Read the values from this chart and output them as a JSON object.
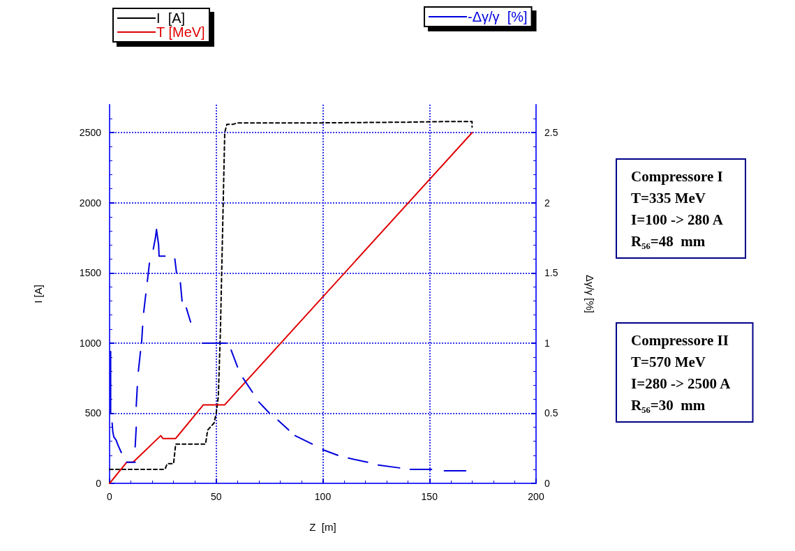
{
  "chart_data": {
    "type": "line",
    "xlabel": "Z  [m]",
    "ylabel": "I [A]",
    "y2label": "Δγ/γ [%]",
    "xlim": [
      0,
      200
    ],
    "xticks": [
      0,
      50,
      100,
      150,
      200
    ],
    "ylim": [
      0,
      2700
    ],
    "yticks": [
      0,
      500,
      1000,
      1500,
      2000,
      2500
    ],
    "y2lim": [
      0,
      2.7
    ],
    "y2ticks": [
      0,
      0.5,
      1,
      1.5,
      2,
      2.5
    ],
    "grid": true,
    "legend": "top",
    "marker": "none",
    "series": [
      {
        "name": "I  [A]",
        "color": "#000000",
        "line_style": "dashed",
        "x": [
          0,
          26,
          27,
          30,
          31,
          45,
          46,
          49,
          50,
          51,
          52,
          53,
          54,
          55,
          58,
          60,
          100,
          140,
          160,
          170,
          170
        ],
        "values": [
          100,
          100,
          140,
          140,
          280,
          280,
          380,
          430,
          500,
          620,
          1100,
          1800,
          2500,
          2560,
          2560,
          2570,
          2570,
          2575,
          2580,
          2580,
          2540
        ]
      },
      {
        "name": "T [MeV]",
        "color": "#e00000",
        "line_style": "solid",
        "x": [
          0,
          8,
          11,
          24,
          25,
          31,
          44,
          54,
          170
        ],
        "values": [
          0,
          150,
          150,
          340,
          320,
          320,
          560,
          560,
          2500
        ]
      },
      {
        "name": "-Δγ/γ  [%]",
        "color": "#0000dd",
        "line_style": "solid",
        "axis": "y2",
        "x": [
          0.5,
          0.5,
          null,
          1.2,
          1.5,
          2,
          3,
          4,
          5.5,
          null,
          8,
          12,
          null,
          12,
          12.5,
          null,
          12.5,
          13,
          null,
          13.5,
          14.5,
          null,
          15,
          15.5,
          null,
          16,
          17,
          null,
          17.7,
          18.7,
          null,
          20.5,
          21.5,
          22,
          23,
          23.2,
          26,
          null,
          30.6,
          31.4,
          null,
          33.2,
          34,
          null,
          36,
          38,
          null,
          43.7,
          54.7,
          null,
          57,
          60,
          null,
          62.6,
          67,
          null,
          70,
          75,
          null,
          79,
          84,
          null,
          87,
          95,
          null,
          100,
          107,
          null,
          112,
          121,
          null,
          126,
          136,
          null,
          141,
          151,
          null,
          157,
          167
        ],
        "values": [
          0.94,
          0.5,
          null,
          0.43,
          0.37,
          0.33,
          0.31,
          0.27,
          0.22,
          null,
          0.15,
          0.15,
          null,
          0.26,
          0.4,
          null,
          0.55,
          0.69,
          null,
          0.8,
          0.94,
          null,
          1.0,
          1.12,
          null,
          1.22,
          1.35,
          null,
          1.44,
          1.57,
          null,
          1.67,
          1.75,
          1.81,
          1.7,
          1.62,
          1.62,
          null,
          1.6,
          1.5,
          null,
          1.43,
          1.3,
          null,
          1.25,
          1.15,
          null,
          1.0,
          1.0,
          null,
          0.95,
          0.83,
          null,
          0.75,
          0.65,
          null,
          0.58,
          0.5,
          null,
          0.45,
          0.38,
          null,
          0.34,
          0.28,
          null,
          0.24,
          0.2,
          null,
          0.18,
          0.15,
          null,
          0.13,
          0.11,
          null,
          0.1,
          0.1,
          null,
          0.09,
          0.09
        ]
      }
    ],
    "annotations": [
      "Compressore I\nT=335 MeV\nI=100 -> 280 A\nR₅₆=48  mm",
      "Compressore II\nT=570 MeV\nI=280 -> 2500 A\nR₅₆=30  mm"
    ]
  }
}
